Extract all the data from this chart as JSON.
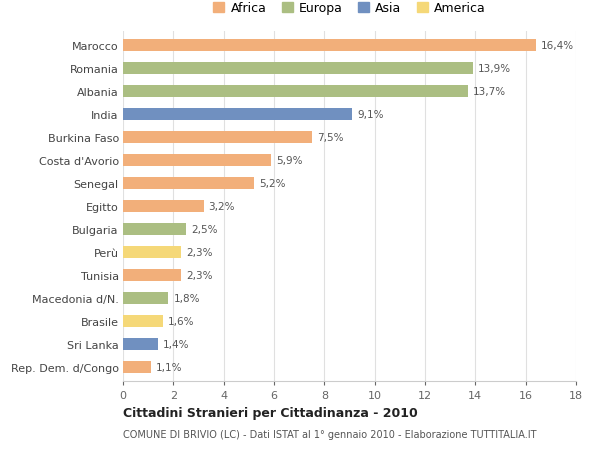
{
  "countries": [
    "Marocco",
    "Romania",
    "Albania",
    "India",
    "Burkina Faso",
    "Costa d'Avorio",
    "Senegal",
    "Egitto",
    "Bulgaria",
    "Perù",
    "Tunisia",
    "Macedonia d/N.",
    "Brasile",
    "Sri Lanka",
    "Rep. Dem. d/Congo"
  ],
  "values": [
    16.4,
    13.9,
    13.7,
    9.1,
    7.5,
    5.9,
    5.2,
    3.2,
    2.5,
    2.3,
    2.3,
    1.8,
    1.6,
    1.4,
    1.1
  ],
  "labels": [
    "16,4%",
    "13,9%",
    "13,7%",
    "9,1%",
    "7,5%",
    "5,9%",
    "5,2%",
    "3,2%",
    "2,5%",
    "2,3%",
    "2,3%",
    "1,8%",
    "1,6%",
    "1,4%",
    "1,1%"
  ],
  "continents": [
    "Africa",
    "Europa",
    "Europa",
    "Asia",
    "Africa",
    "Africa",
    "Africa",
    "Africa",
    "Europa",
    "America",
    "Africa",
    "Europa",
    "America",
    "Asia",
    "Africa"
  ],
  "colors": {
    "Africa": "#F2AF7A",
    "Europa": "#ABBE82",
    "Asia": "#7090C0",
    "America": "#F5D878"
  },
  "xlim": [
    0,
    18
  ],
  "xticks": [
    0,
    2,
    4,
    6,
    8,
    10,
    12,
    14,
    16,
    18
  ],
  "title": "Cittadini Stranieri per Cittadinanza - 2010",
  "subtitle": "COMUNE DI BRIVIO (LC) - Dati ISTAT al 1° gennaio 2010 - Elaborazione TUTTITALIA.IT",
  "background_color": "#ffffff",
  "grid_color": "#e0e0e0",
  "bar_height": 0.55
}
